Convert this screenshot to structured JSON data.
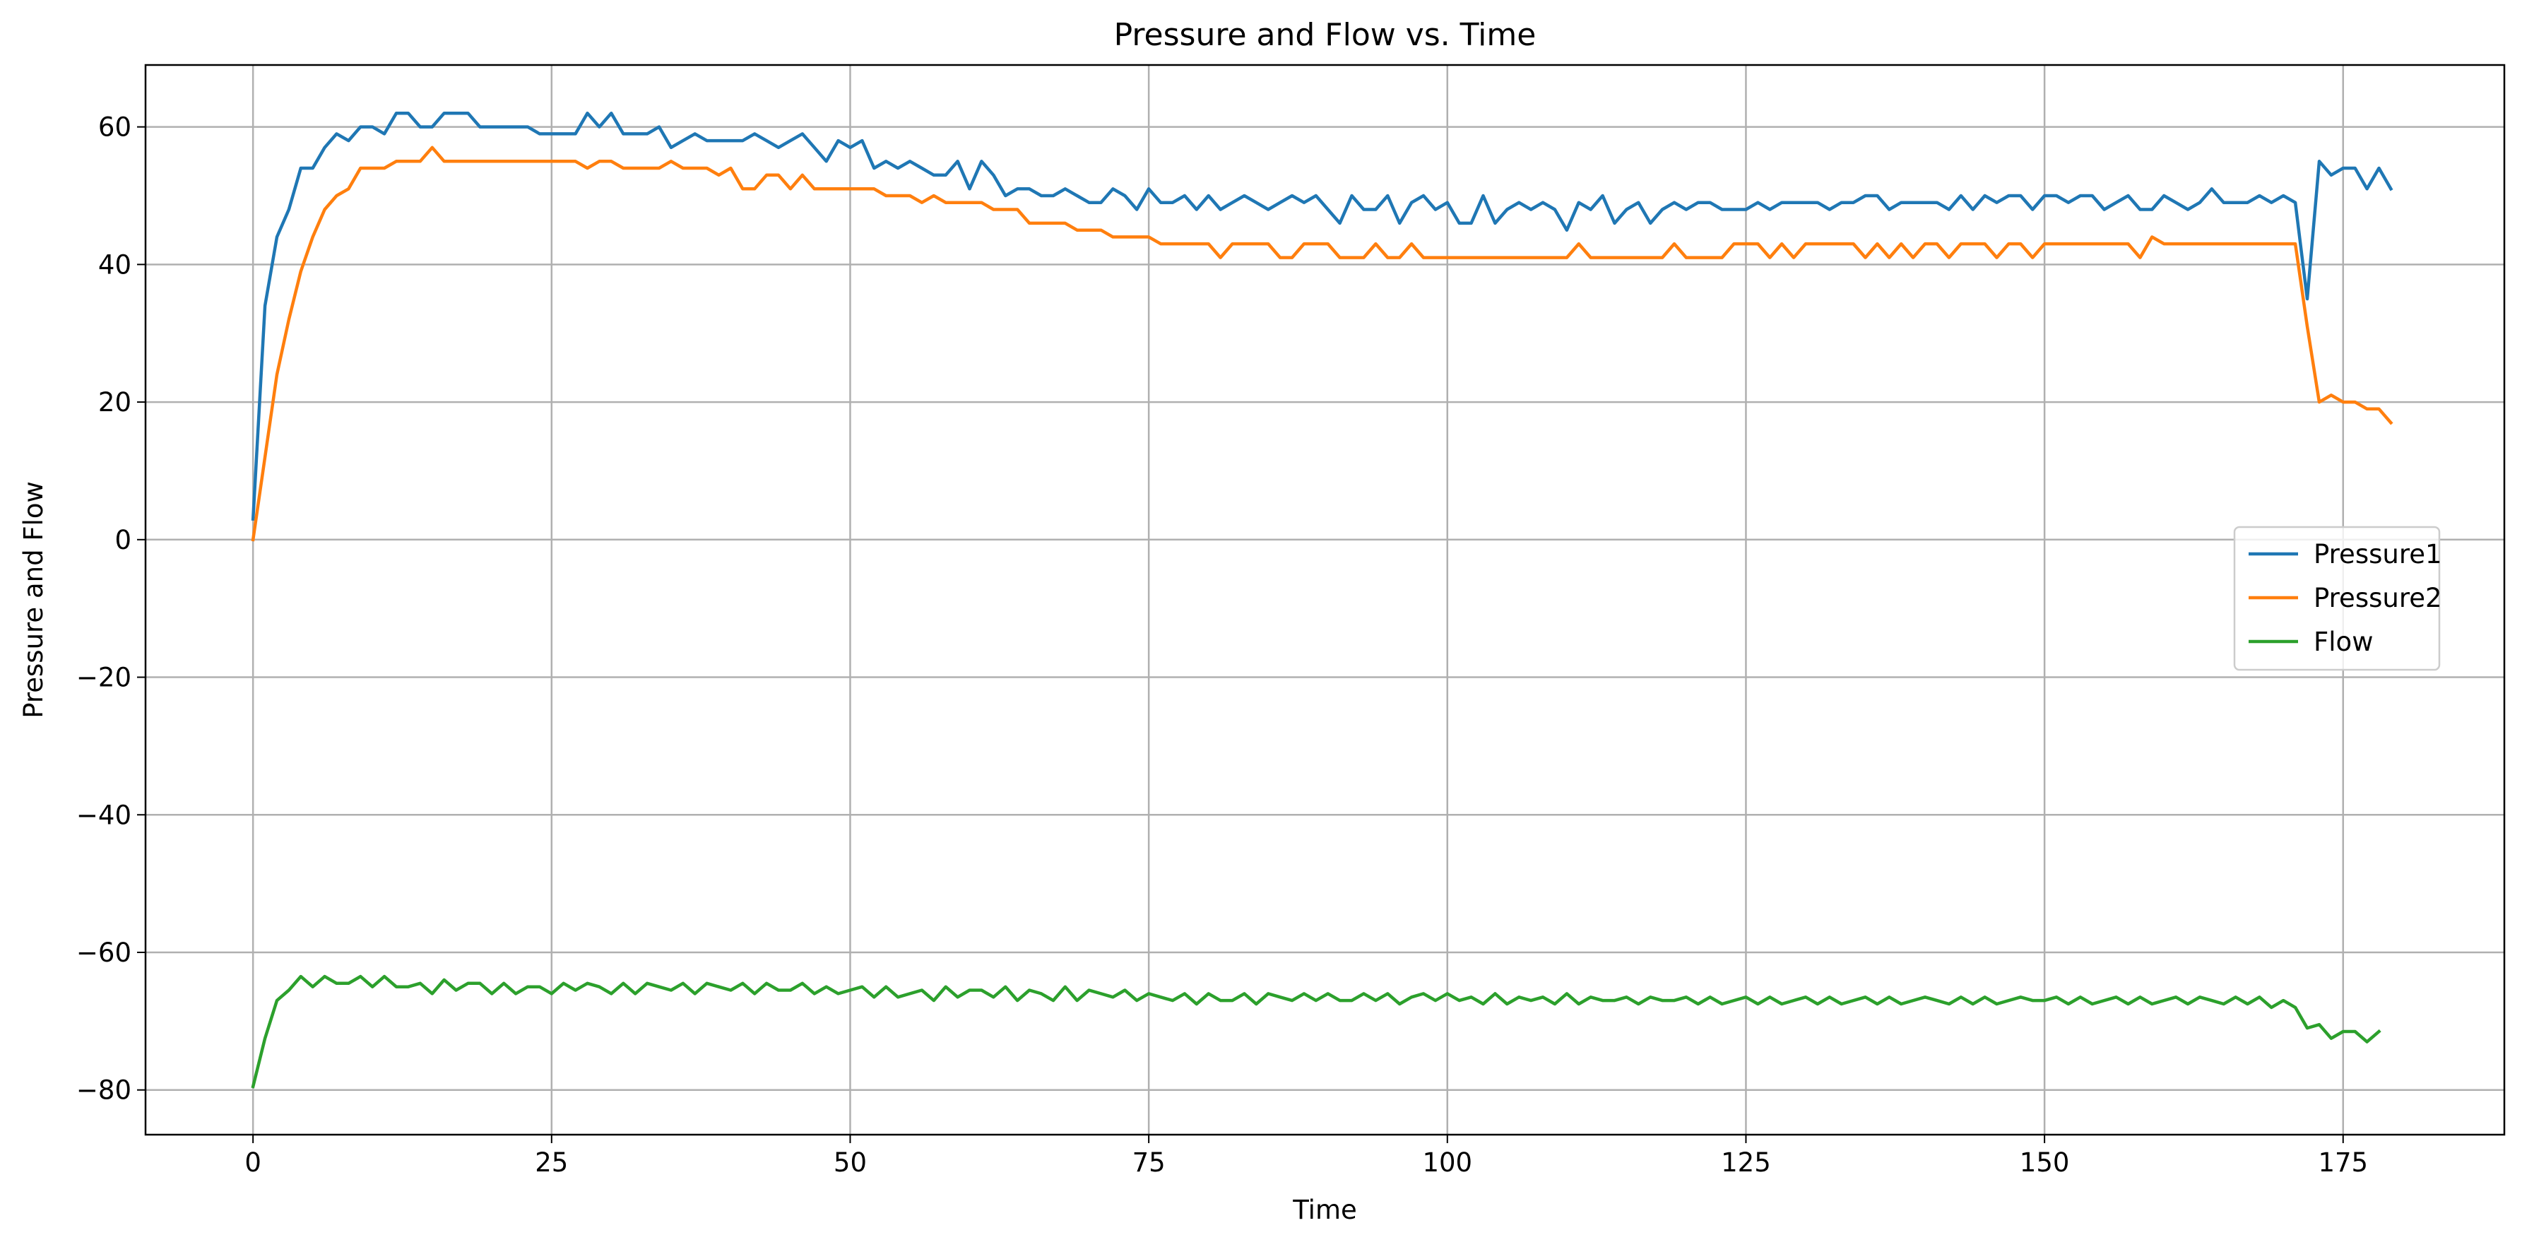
{
  "chart_data": {
    "type": "line",
    "title": "Pressure and Flow vs. Time",
    "xlabel": "Time",
    "ylabel": "Pressure and Flow",
    "xlim": [
      -9,
      188.5
    ],
    "ylim": [
      -86.5,
      69
    ],
    "x_ticks": [
      0,
      25,
      50,
      75,
      100,
      125,
      150,
      175
    ],
    "y_ticks": [
      -80,
      -60,
      -40,
      -20,
      0,
      20,
      40,
      60
    ],
    "x_tick_labels": [
      "0",
      "25",
      "50",
      "75",
      "100",
      "125",
      "150",
      "175"
    ],
    "y_tick_labels": [
      "−80",
      "−60",
      "−40",
      "−20",
      "0",
      "20",
      "40",
      "60"
    ],
    "grid": true,
    "legend_position": "center-right",
    "series": [
      {
        "name": "Pressure1",
        "color": "#1f77b4",
        "values": [
          3,
          34,
          44,
          48,
          54,
          54,
          57,
          59,
          58,
          60,
          60,
          59,
          62,
          62,
          60,
          60,
          62,
          62,
          62,
          60,
          60,
          60,
          60,
          60,
          59,
          59,
          59,
          59,
          62,
          60,
          62,
          59,
          59,
          59,
          60,
          57,
          58,
          59,
          58,
          58,
          58,
          58,
          59,
          58,
          57,
          58,
          59,
          57,
          55,
          58,
          57,
          58,
          54,
          55,
          54,
          55,
          54,
          53,
          53,
          55,
          51,
          55,
          53,
          50,
          51,
          51,
          50,
          50,
          51,
          50,
          49,
          49,
          51,
          50,
          48,
          51,
          49,
          49,
          50,
          48,
          50,
          48,
          49,
          50,
          49,
          48,
          49,
          50,
          49,
          50,
          48,
          46,
          50,
          48,
          48,
          50,
          46,
          49,
          50,
          48,
          49,
          46,
          46,
          50,
          46,
          48,
          49,
          48,
          49,
          48,
          45,
          49,
          48,
          50,
          46,
          48,
          49,
          46,
          48,
          49,
          48,
          49,
          49,
          48,
          48,
          48,
          49,
          48,
          49,
          49,
          49,
          49,
          48,
          49,
          49,
          50,
          50,
          48,
          49,
          49,
          49,
          49,
          48,
          50,
          48,
          50,
          49,
          50,
          50,
          48,
          50,
          50,
          49,
          50,
          50,
          48,
          49,
          50,
          48,
          48,
          50,
          49,
          48,
          49,
          51,
          49,
          49,
          49,
          50,
          49,
          50,
          49,
          35,
          55,
          53,
          54,
          54,
          51,
          54,
          51
        ]
      },
      {
        "name": "Pressure2",
        "color": "#ff7f0e",
        "values": [
          0,
          12,
          24,
          32,
          39,
          44,
          48,
          50,
          51,
          54,
          54,
          54,
          55,
          55,
          55,
          57,
          55,
          55,
          55,
          55,
          55,
          55,
          55,
          55,
          55,
          55,
          55,
          55,
          54,
          55,
          55,
          54,
          54,
          54,
          54,
          55,
          54,
          54,
          54,
          53,
          54,
          51,
          51,
          53,
          53,
          51,
          53,
          51,
          51,
          51,
          51,
          51,
          51,
          50,
          50,
          50,
          49,
          50,
          49,
          49,
          49,
          49,
          48,
          48,
          48,
          46,
          46,
          46,
          46,
          45,
          45,
          45,
          44,
          44,
          44,
          44,
          43,
          43,
          43,
          43,
          43,
          41,
          43,
          43,
          43,
          43,
          41,
          41,
          43,
          43,
          43,
          41,
          41,
          41,
          43,
          41,
          41,
          43,
          41,
          41,
          41,
          41,
          41,
          41,
          41,
          41,
          41,
          41,
          41,
          41,
          41,
          43,
          41,
          41,
          41,
          41,
          41,
          41,
          41,
          43,
          41,
          41,
          41,
          41,
          43,
          43,
          43,
          41,
          43,
          41,
          43,
          43,
          43,
          43,
          43,
          41,
          43,
          41,
          43,
          41,
          43,
          43,
          41,
          43,
          43,
          43,
          41,
          43,
          43,
          41,
          43,
          43,
          43,
          43,
          43,
          43,
          43,
          43,
          41,
          44,
          43,
          43,
          43,
          43,
          43,
          43,
          43,
          43,
          43,
          43,
          43,
          43,
          31,
          20,
          21,
          20,
          20,
          19,
          19,
          17
        ]
      },
      {
        "name": "Flow",
        "color": "#2ca02c",
        "values": [
          -79.5,
          -72.5,
          -67,
          -65.5,
          -63.5,
          -65,
          -63.5,
          -64.5,
          -64.5,
          -63.5,
          -65,
          -63.5,
          -65,
          -65,
          -64.5,
          -66,
          -64,
          -65.5,
          -64.5,
          -64.5,
          -66,
          -64.5,
          -66,
          -65,
          -65,
          -66,
          -64.5,
          -65.5,
          -64.5,
          -65,
          -66,
          -64.5,
          -66,
          -64.5,
          -65,
          -65.5,
          -64.5,
          -66,
          -64.5,
          -65,
          -65.5,
          -64.5,
          -66,
          -64.5,
          -65.5,
          -65.5,
          -64.5,
          -66,
          -65,
          -66,
          -65.5,
          -65,
          -66.5,
          -65,
          -66.5,
          -66,
          -65.5,
          -67,
          -65,
          -66.5,
          -65.5,
          -65.5,
          -66.5,
          -65,
          -67,
          -65.5,
          -66,
          -67,
          -65,
          -67,
          -65.5,
          -66,
          -66.5,
          -65.5,
          -67,
          -66,
          -66.5,
          -67,
          -66,
          -67.5,
          -66,
          -67,
          -67,
          -66,
          -67.5,
          -66,
          -66.5,
          -67,
          -66,
          -67,
          -66,
          -67,
          -67,
          -66,
          -67,
          -66,
          -67.5,
          -66.5,
          -66,
          -67,
          -66,
          -67,
          -66.5,
          -67.5,
          -66,
          -67.5,
          -66.5,
          -67,
          -66.5,
          -67.5,
          -66,
          -67.5,
          -66.5,
          -67,
          -67,
          -66.5,
          -67.5,
          -66.5,
          -67,
          -67,
          -66.5,
          -67.5,
          -66.5,
          -67.5,
          -67,
          -66.5,
          -67.5,
          -66.5,
          -67.5,
          -67,
          -66.5,
          -67.5,
          -66.5,
          -67.5,
          -67,
          -66.5,
          -67.5,
          -66.5,
          -67.5,
          -67,
          -66.5,
          -67,
          -67.5,
          -66.5,
          -67.5,
          -66.5,
          -67.5,
          -67,
          -66.5,
          -67,
          -67,
          -66.5,
          -67.5,
          -66.5,
          -67.5,
          -67,
          -66.5,
          -67.5,
          -66.5,
          -67.5,
          -67,
          -66.5,
          -67.5,
          -66.5,
          -67,
          -67.5,
          -66.5,
          -67.5,
          -66.5,
          -68,
          -67,
          -68,
          -71,
          -70.5,
          -72.5,
          -71.5,
          -71.5,
          -73,
          -71.5
        ]
      }
    ]
  }
}
